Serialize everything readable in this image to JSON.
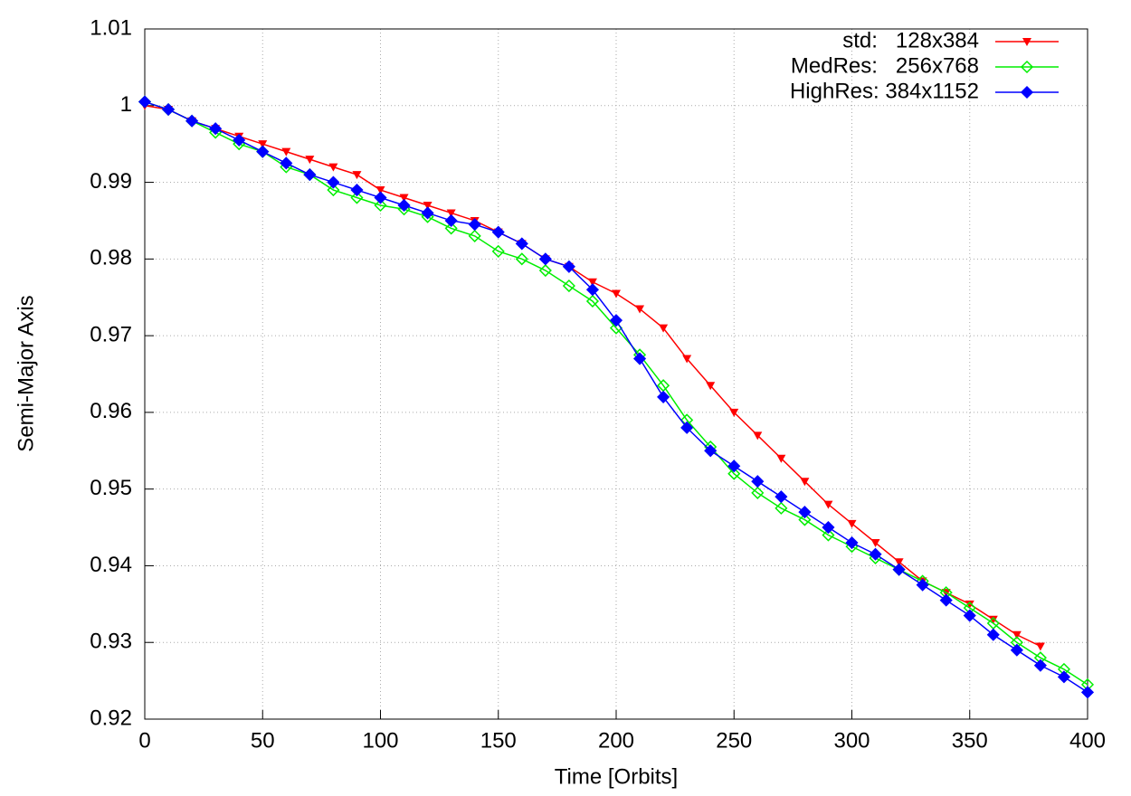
{
  "chart_data": {
    "type": "line",
    "x_label": "Time [Orbits]",
    "y_label": "Semi-Major Axis",
    "x": [
      0,
      10,
      20,
      30,
      40,
      50,
      60,
      70,
      80,
      90,
      100,
      110,
      120,
      130,
      140,
      150,
      160,
      170,
      180,
      190,
      200,
      210,
      220,
      230,
      240,
      250,
      260,
      270,
      280,
      290,
      300,
      310,
      320,
      330,
      340,
      350,
      360,
      370,
      380,
      390,
      400
    ],
    "series": [
      {
        "name": "std:   128x384",
        "color": "#ff0000",
        "marker": "triangle-down",
        "values": [
          1.0,
          0.9995,
          0.998,
          0.997,
          0.996,
          0.995,
          0.994,
          0.993,
          0.992,
          0.991,
          0.989,
          0.988,
          0.987,
          0.986,
          0.985,
          0.9835,
          0.982,
          0.98,
          0.979,
          0.977,
          0.9755,
          0.9735,
          0.971,
          0.967,
          0.9635,
          0.96,
          0.957,
          0.954,
          0.951,
          0.948,
          0.9455,
          0.943,
          0.9405,
          0.938,
          0.9365,
          0.935,
          0.933,
          0.931,
          0.9295,
          null,
          null
        ]
      },
      {
        "name": "MedRes:   256x768",
        "color": "#00ee00",
        "marker": "diamond-open",
        "values": [
          1.0005,
          0.9995,
          0.998,
          0.9965,
          0.995,
          0.994,
          0.992,
          0.991,
          0.989,
          0.988,
          0.987,
          0.9865,
          0.9855,
          0.984,
          0.983,
          0.981,
          0.98,
          0.9785,
          0.9765,
          0.9745,
          0.971,
          0.9675,
          0.9635,
          0.959,
          0.9555,
          0.952,
          0.9495,
          0.9475,
          0.946,
          0.944,
          0.9425,
          0.941,
          0.9395,
          0.938,
          0.9365,
          0.9345,
          0.9325,
          0.93,
          0.928,
          0.9265,
          0.9245
        ]
      },
      {
        "name": "HighRes: 384x1152",
        "color": "#0000ff",
        "marker": "diamond-filled",
        "values": [
          1.0005,
          0.9995,
          0.998,
          0.997,
          0.9955,
          0.994,
          0.9925,
          0.991,
          0.99,
          0.989,
          0.988,
          0.987,
          0.986,
          0.985,
          0.9845,
          0.9835,
          0.982,
          0.98,
          0.979,
          0.976,
          0.972,
          0.967,
          0.962,
          0.958,
          0.955,
          0.953,
          0.951,
          0.949,
          0.947,
          0.945,
          0.943,
          0.9415,
          0.9395,
          0.9375,
          0.9355,
          0.9335,
          0.931,
          0.929,
          0.927,
          0.9255,
          0.9235
        ]
      }
    ],
    "xlim": [
      0,
      400
    ],
    "xticks": [
      0,
      50,
      100,
      150,
      200,
      250,
      300,
      350,
      400
    ],
    "ylim": [
      0.92,
      1.01
    ],
    "yticks": [
      0.92,
      0.93,
      0.94,
      0.95,
      0.96,
      0.97,
      0.98,
      0.99,
      1,
      1.01
    ],
    "grid": true,
    "legend": "top-right"
  }
}
